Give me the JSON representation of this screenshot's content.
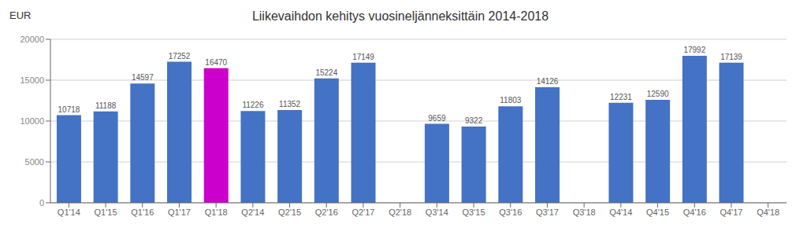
{
  "chart_data": {
    "type": "bar",
    "title": "Liikevaihdon kehitys vuosineljänneksittäin 2014-2018",
    "ylabel": "EUR",
    "categories": [
      "Q1'14",
      "Q1'15",
      "Q1'16",
      "Q1'17",
      "Q1'18",
      "Q2'14",
      "Q2'15",
      "Q2'16",
      "Q2'17",
      "Q2'18",
      "Q3'14",
      "Q3'15",
      "Q3'16",
      "Q3'17",
      "Q3'18",
      "Q4'14",
      "Q4'15",
      "Q4'16",
      "Q4'17",
      "Q4'18"
    ],
    "values": [
      10718,
      11188,
      14597,
      17252,
      16470,
      11226,
      11352,
      15224,
      17149,
      null,
      9659,
      9322,
      11803,
      14126,
      null,
      12231,
      12590,
      17992,
      17139,
      null
    ],
    "colors": [
      "#4472c4",
      "#4472c4",
      "#4472c4",
      "#4472c4",
      "#cc00cc",
      "#4472c4",
      "#4472c4",
      "#4472c4",
      "#4472c4",
      "#4472c4",
      "#4472c4",
      "#4472c4",
      "#4472c4",
      "#4472c4",
      "#4472c4",
      "#4472c4",
      "#4472c4",
      "#4472c4",
      "#4472c4",
      "#4472c4"
    ],
    "ylim": [
      0,
      20000
    ],
    "yticks": [
      0,
      5000,
      10000,
      15000,
      20000
    ],
    "grid": true,
    "data_labels": true
  }
}
